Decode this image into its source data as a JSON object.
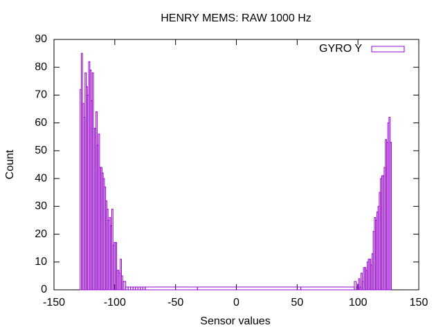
{
  "chart_data": {
    "type": "bar",
    "title": "HENRY MEMS: RAW 1000 Hz",
    "x_label": "Sensor values",
    "y_label": "Count",
    "series": [
      {
        "name": "GYRO Y",
        "color": "#9400d3",
        "x": [
          -128,
          -127,
          -126,
          -125,
          -124,
          -123,
          -122,
          -121,
          -120,
          -119,
          -118,
          -117,
          -116,
          -115,
          -114,
          -113,
          -112,
          -111,
          -110,
          -109,
          -108,
          -107,
          -106,
          -105,
          -104,
          -103,
          -102,
          -101,
          -100,
          -99,
          -98,
          -97,
          -96,
          -95,
          -94,
          -93,
          -92,
          -90,
          -88,
          -86,
          -84,
          -82,
          -80,
          -78,
          -76,
          -74,
          10,
          96,
          98,
          99,
          100,
          101,
          102,
          103,
          104,
          105,
          106,
          107,
          108,
          109,
          110,
          111,
          112,
          113,
          114,
          115,
          116,
          117,
          118,
          119,
          120,
          121,
          122,
          123,
          124,
          125,
          126,
          127
        ],
        "values": [
          72,
          85,
          67,
          62,
          78,
          73,
          70,
          82,
          79,
          68,
          78,
          58,
          58,
          64,
          52,
          56,
          44,
          44,
          42,
          40,
          37,
          32,
          29,
          25,
          26,
          23,
          29,
          16,
          17,
          17,
          7,
          7,
          6,
          11,
          5,
          3,
          3,
          1,
          1,
          1,
          1,
          1,
          1,
          1,
          1,
          1,
          1,
          1,
          3,
          1,
          2,
          4,
          1,
          6,
          3,
          8,
          8,
          7,
          10,
          11,
          11,
          9,
          13,
          21,
          26,
          25,
          28,
          30,
          35,
          40,
          41,
          41,
          44,
          54,
          53,
          60,
          62,
          53
        ]
      }
    ],
    "xlim": [
      -150,
      150
    ],
    "xticks": [
      -150,
      -100,
      -50,
      0,
      50,
      100,
      150
    ],
    "ylim": [
      0,
      90
    ],
    "yticks": [
      0,
      10,
      20,
      30,
      40,
      50,
      60,
      70,
      80,
      90
    ],
    "legend": "top-right"
  }
}
